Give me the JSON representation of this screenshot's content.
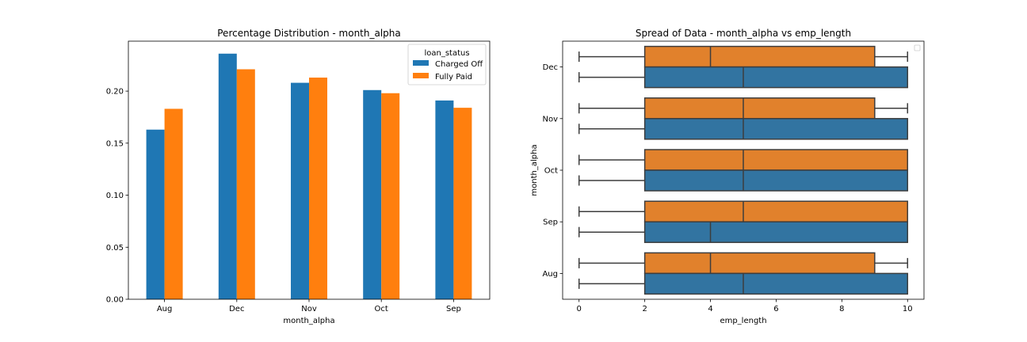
{
  "chart_data": [
    {
      "type": "bar",
      "title": "Percentage Distribution - month_alpha",
      "xlabel": "month_alpha",
      "ylabel": "",
      "categories": [
        "Aug",
        "Dec",
        "Nov",
        "Oct",
        "Sep"
      ],
      "ylim": [
        0,
        0.248
      ],
      "yticks": [
        "0.00",
        "0.05",
        "0.10",
        "0.15",
        "0.20"
      ],
      "legend": {
        "title": "loan_status",
        "placement": "top-right"
      },
      "series": [
        {
          "name": "Charged Off",
          "color": "#1f77b4",
          "values": [
            0.163,
            0.236,
            0.208,
            0.201,
            0.191
          ]
        },
        {
          "name": "Fully Paid",
          "color": "#ff7f0e",
          "values": [
            0.183,
            0.221,
            0.213,
            0.198,
            0.184
          ]
        }
      ]
    },
    {
      "type": "box",
      "title": "Spread of Data - month_alpha vs emp_length",
      "xlabel": "emp_length",
      "ylabel": "month_alpha",
      "categories": [
        "Dec",
        "Nov",
        "Oct",
        "Sep",
        "Aug"
      ],
      "xlim": [
        -0.5,
        10.5
      ],
      "xticks": [
        "0",
        "2",
        "4",
        "6",
        "8",
        "10"
      ],
      "legend": {
        "placement": "top-right",
        "empty": true
      },
      "series": [
        {
          "color": "#e1812c",
          "boxes": [
            {
              "min": 0,
              "q1": 2,
              "median": 4,
              "q3": 9,
              "max": 10
            },
            {
              "min": 0,
              "q1": 2,
              "median": 5,
              "q3": 9,
              "max": 10
            },
            {
              "min": 0,
              "q1": 2,
              "median": 5,
              "q3": 10,
              "max": 10
            },
            {
              "min": 0,
              "q1": 2,
              "median": 5,
              "q3": 10,
              "max": 10
            },
            {
              "min": 0,
              "q1": 2,
              "median": 4,
              "q3": 9,
              "max": 10
            }
          ]
        },
        {
          "color": "#3274a1",
          "boxes": [
            {
              "min": 0,
              "q1": 2,
              "median": 5,
              "q3": 10,
              "max": 10
            },
            {
              "min": 0,
              "q1": 2,
              "median": 5,
              "q3": 10,
              "max": 10
            },
            {
              "min": 0,
              "q1": 2,
              "median": 5,
              "q3": 10,
              "max": 10
            },
            {
              "min": 0,
              "q1": 2,
              "median": 4,
              "q3": 10,
              "max": 10
            },
            {
              "min": 0,
              "q1": 2,
              "median": 5,
              "q3": 10,
              "max": 10
            }
          ]
        }
      ]
    }
  ]
}
